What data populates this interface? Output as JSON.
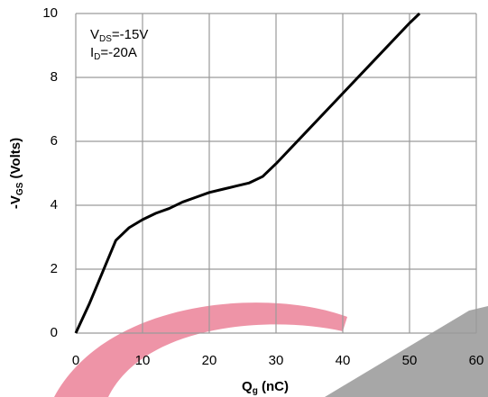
{
  "chart_data": {
    "type": "line",
    "xlabel": [
      "Q",
      "g",
      " (nC)"
    ],
    "ylabel": [
      "-V",
      "GS",
      " (Volts)"
    ],
    "annotations": [
      [
        "V",
        "DS",
        "=-15V"
      ],
      [
        "I",
        "D",
        "=-20A"
      ]
    ],
    "x": [
      0,
      2,
      4,
      6,
      8,
      10,
      12,
      14,
      16,
      18,
      20,
      22,
      24,
      26,
      28,
      30,
      35,
      40,
      45,
      50,
      51.5
    ],
    "series": [
      {
        "color": "#000000",
        "values": [
          0,
          0.9,
          1.9,
          2.9,
          3.3,
          3.55,
          3.75,
          3.9,
          4.1,
          4.25,
          4.4,
          4.5,
          4.6,
          4.7,
          4.9,
          5.3,
          6.4,
          7.5,
          8.6,
          9.7,
          10
        ]
      }
    ],
    "xlim": [
      0,
      60
    ],
    "xticks": [
      0,
      10,
      20,
      30,
      40,
      50,
      60
    ],
    "ylim": [
      0,
      10
    ],
    "yticks": [
      0,
      2,
      4,
      6,
      8,
      10
    ],
    "grid": true
  }
}
